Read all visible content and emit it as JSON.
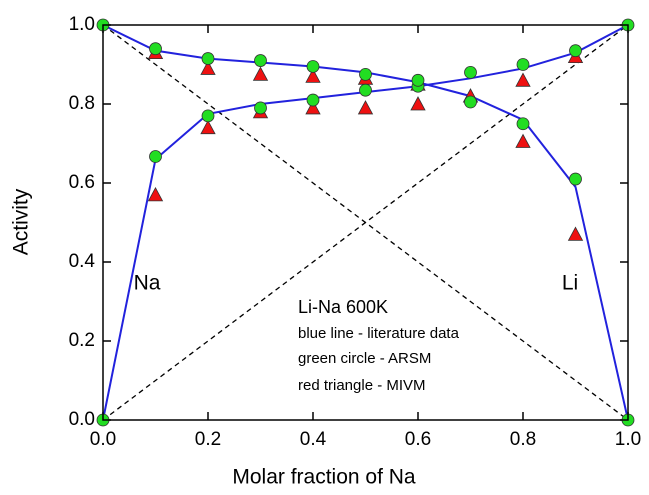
{
  "chart_data": {
    "type": "line",
    "xlabel": "Molar fraction of Na",
    "ylabel": "Activity",
    "xlim": [
      0,
      1
    ],
    "ylim": [
      0,
      1
    ],
    "xticks": [
      {
        "value": 0,
        "label": "0.0"
      },
      {
        "value": 0.2,
        "label": "0.2"
      },
      {
        "value": 0.4,
        "label": "0.4"
      },
      {
        "value": 0.6,
        "label": "0.6"
      },
      {
        "value": 0.8,
        "label": "0.8"
      },
      {
        "value": 1,
        "label": "1.0"
      }
    ],
    "yticks": [
      {
        "value": 0,
        "label": "0.0"
      },
      {
        "value": 0.2,
        "label": "0.2"
      },
      {
        "value": 0.4,
        "label": "0.4"
      },
      {
        "value": 0.6,
        "label": "0.6"
      },
      {
        "value": 0.8,
        "label": "0.8"
      },
      {
        "value": 1,
        "label": "1.0"
      }
    ],
    "annotations": [
      "Na",
      "Li",
      "Li-Na 600K",
      "blue line - literature data",
      "green circle - ARSM",
      "red triangle - MIVM"
    ],
    "series": [
      {
        "style": "dashed",
        "color": "#000000",
        "x": [
          0,
          1
        ],
        "values": [
          0,
          1
        ]
      },
      {
        "style": "dashed",
        "color": "#000000",
        "x": [
          0,
          1
        ],
        "values": [
          1,
          0
        ]
      },
      {
        "style": "line",
        "color": "#2222dd",
        "x": [
          0,
          0.1,
          0.2,
          0.3,
          0.4,
          0.5,
          0.6,
          0.7,
          0.8,
          0.9,
          1
        ],
        "values": [
          0,
          0.66,
          0.775,
          0.8,
          0.815,
          0.83,
          0.845,
          0.865,
          0.89,
          0.93,
          1
        ]
      },
      {
        "style": "line",
        "color": "#2222dd",
        "x": [
          0,
          0.1,
          0.2,
          0.3,
          0.4,
          0.5,
          0.6,
          0.7,
          0.8,
          0.9,
          1
        ],
        "values": [
          1,
          0.935,
          0.915,
          0.905,
          0.895,
          0.88,
          0.855,
          0.82,
          0.76,
          0.59,
          0
        ]
      },
      {
        "style": "triangle",
        "color": "#ee1111",
        "x": [
          0.1,
          0.2,
          0.3,
          0.4,
          0.5,
          0.6,
          0.7,
          0.8,
          0.9
        ],
        "values": [
          0.57,
          0.74,
          0.78,
          0.79,
          0.79,
          0.8,
          0.82,
          0.86,
          0.92
        ]
      },
      {
        "style": "triangle",
        "color": "#ee1111",
        "x": [
          0.1,
          0.2,
          0.3,
          0.4,
          0.5,
          0.6,
          0.7,
          0.8,
          0.9
        ],
        "values": [
          0.93,
          0.89,
          0.875,
          0.87,
          0.865,
          0.85,
          0.82,
          0.705,
          0.47
        ]
      },
      {
        "style": "circle",
        "color": "#22dd22",
        "x": [
          0,
          0.1,
          0.2,
          0.3,
          0.4,
          0.5,
          0.6,
          0.7,
          0.8,
          0.9,
          1
        ],
        "values": [
          0,
          0.667,
          0.77,
          0.79,
          0.81,
          0.835,
          0.845,
          0.88,
          0.9,
          0.935,
          1
        ]
      },
      {
        "style": "circle",
        "color": "#22dd22",
        "x": [
          0,
          0.1,
          0.2,
          0.3,
          0.4,
          0.5,
          0.6,
          0.7,
          0.8,
          0.9,
          1
        ],
        "values": [
          1,
          0.94,
          0.915,
          0.91,
          0.895,
          0.875,
          0.86,
          0.805,
          0.75,
          0.61,
          0
        ]
      }
    ]
  }
}
